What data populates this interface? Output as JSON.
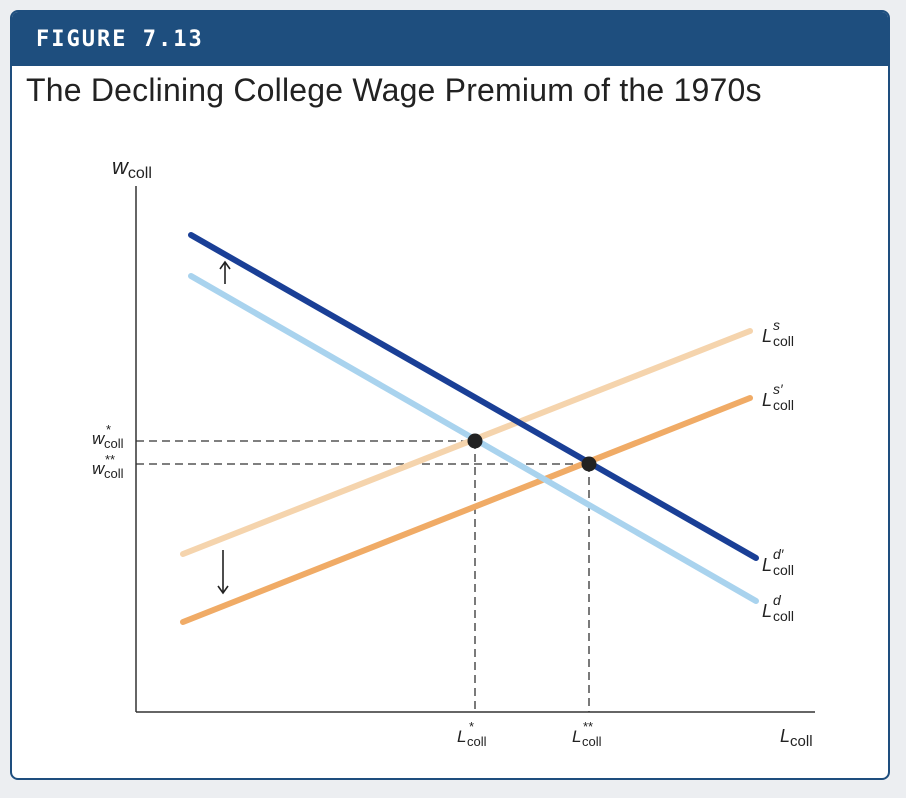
{
  "figure_label": "FIGURE 7.13",
  "title": "The Declining College Wage Premium of the 1970s",
  "axes": {
    "y_label": {
      "main": "w",
      "sub": "coll"
    },
    "x_label": {
      "main": "L",
      "sub": "coll"
    }
  },
  "curves": [
    {
      "id": "Ld",
      "main": "L",
      "sup": "d",
      "sub": "coll",
      "color": "#a9d3ee"
    },
    {
      "id": "Ldprime",
      "main": "L",
      "sup": "d′",
      "sub": "coll",
      "color": "#1a3f96"
    },
    {
      "id": "Ls",
      "main": "L",
      "sup": "s",
      "sub": "coll",
      "color": "#f5d4ad"
    },
    {
      "id": "Lsprime",
      "main": "L",
      "sup": "s′",
      "sub": "coll",
      "color": "#f0ab66"
    }
  ],
  "equilibria": [
    {
      "y": {
        "main": "w",
        "sup": "*",
        "sub": "coll"
      },
      "x": {
        "main": "L",
        "sup": "*",
        "sub": "coll"
      }
    },
    {
      "y": {
        "main": "w",
        "sup": "**",
        "sub": "coll"
      },
      "x": {
        "main": "L",
        "sup": "**",
        "sub": "coll"
      }
    }
  ],
  "shift_arrows": [
    "up",
    "down"
  ]
}
